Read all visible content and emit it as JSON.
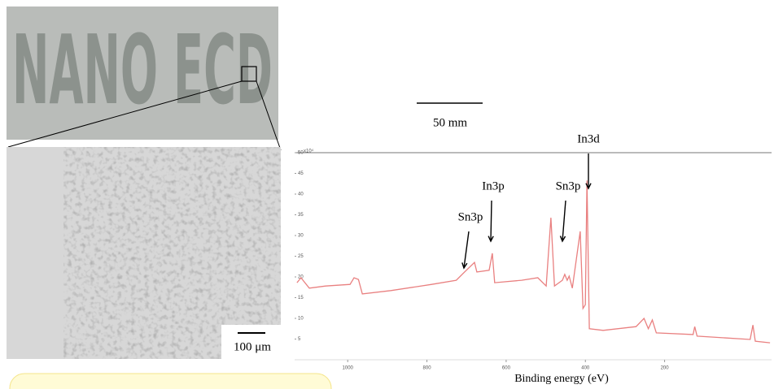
{
  "photo": {
    "label": "NANO ECD",
    "scale_bar": "50 mm"
  },
  "micrograph": {
    "scale_bar": "100 μm"
  },
  "chart_data": {
    "type": "line",
    "xlabel": "Binding energy (eV)",
    "y_multiplier": "x10⁴",
    "x": [
      1128,
      1118,
      1097,
      1056,
      994,
      984,
      973,
      963,
      891,
      788,
      726,
      705,
      680,
      674,
      643,
      635,
      629,
      561,
      520,
      499,
      487,
      478,
      458,
      452,
      446,
      441,
      433,
      413,
      406,
      400,
      396,
      390,
      355,
      272,
      252,
      241,
      231,
      221,
      128,
      124,
      118,
      -16,
      -23,
      -29,
      -66
    ],
    "values": [
      18.6,
      19.8,
      17.3,
      17.8,
      18.2,
      19.8,
      19.4,
      15.9,
      16.7,
      18.2,
      19.2,
      21.2,
      23.5,
      21.2,
      21.6,
      25.7,
      18.6,
      19.2,
      19.8,
      17.8,
      34.3,
      17.8,
      19.2,
      20.6,
      19.2,
      20.2,
      17.3,
      31.0,
      12.4,
      13.3,
      43.3,
      7.5,
      7.1,
      8.0,
      10.0,
      7.5,
      9.6,
      6.5,
      6.1,
      8.0,
      5.7,
      4.9,
      8.4,
      4.5,
      4.1
    ],
    "color": "#e98080",
    "xlim": [
      1134,
      -70
    ],
    "xticks": [
      1000,
      800,
      600,
      400,
      200
    ],
    "ylim": [
      0,
      50
    ],
    "yticks": [
      5,
      10,
      15,
      20,
      25,
      30,
      35,
      40,
      45,
      50
    ],
    "annotations": [
      "Sn3p",
      "In3p",
      "Sn3p",
      "In3d"
    ]
  }
}
